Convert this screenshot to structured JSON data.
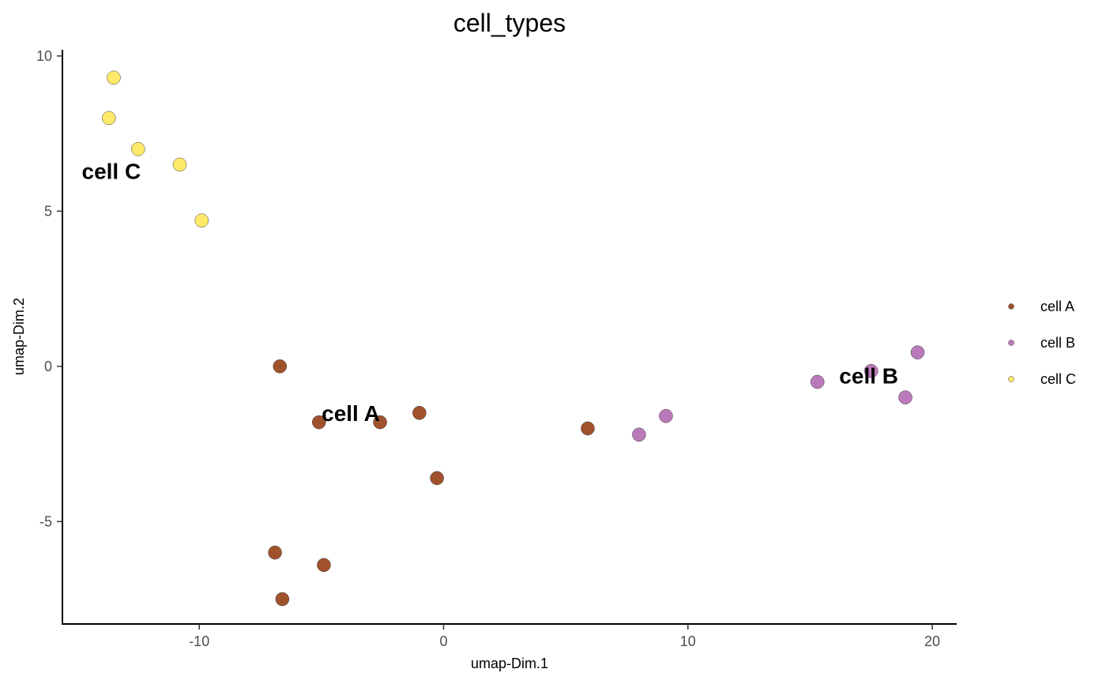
{
  "chart_data": {
    "type": "scatter",
    "title": "cell_types",
    "xlabel": "umap-Dim.1",
    "ylabel": "umap-Dim.2",
    "xlim": [
      -15.6,
      21
    ],
    "ylim": [
      -8.3,
      10.2
    ],
    "x_ticks": [
      -10,
      0,
      10,
      20
    ],
    "x_tick_labels": [
      "-10",
      "0",
      "10",
      "20"
    ],
    "y_ticks": [
      -5,
      0,
      5,
      10
    ],
    "y_tick_labels": [
      "-5",
      "0",
      "5",
      "10"
    ],
    "grid": false,
    "legend_position": "right",
    "series": [
      {
        "name": "cell A",
        "color": "#A0522D",
        "label": "cell A",
        "label_pos": [
          -3.8,
          -1.5
        ],
        "points": [
          [
            -6.7,
            0.0
          ],
          [
            -5.1,
            -1.8
          ],
          [
            -2.6,
            -1.8
          ],
          [
            -0.99,
            -1.5
          ],
          [
            -0.27,
            -3.6
          ],
          [
            5.9,
            -2.0
          ],
          [
            -6.9,
            -6.0
          ],
          [
            -4.9,
            -6.4
          ],
          [
            -6.6,
            -7.5
          ]
        ]
      },
      {
        "name": "cell B",
        "color": "#BA7ABA",
        "label": "cell B",
        "label_pos": [
          17.4,
          -0.3
        ],
        "points": [
          [
            15.3,
            -0.5
          ],
          [
            17.5,
            -0.15
          ],
          [
            19.4,
            0.45
          ],
          [
            18.9,
            -1.0
          ],
          [
            9.1,
            -1.6
          ],
          [
            8.0,
            -2.2
          ]
        ]
      },
      {
        "name": "cell C",
        "color": "#FFE96A",
        "label": "cell C",
        "label_pos": [
          -13.6,
          6.3
        ],
        "points": [
          [
            -13.5,
            9.3
          ],
          [
            -13.7,
            8.0
          ],
          [
            -12.5,
            7.0
          ],
          [
            -10.8,
            6.5
          ],
          [
            -9.9,
            4.7
          ]
        ]
      }
    ]
  }
}
